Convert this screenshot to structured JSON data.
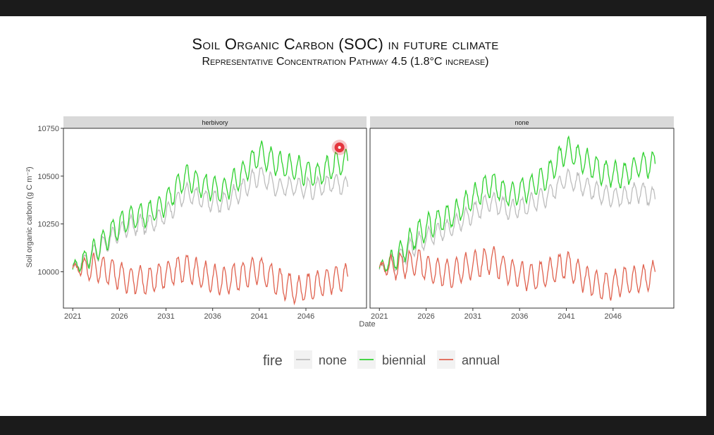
{
  "slide": {
    "title": "Soil Organic Carbon (SOC) in future climate",
    "subtitle": "Representative Concentration Pathway 4.5 (1.8°C increase)"
  },
  "chart_data": {
    "type": "line",
    "xlabel": "Date",
    "ylabel": "Soil organic carbon (g C m⁻²)",
    "x_ticks": [
      "2021",
      "2026",
      "2031",
      "2036",
      "2041",
      "2046"
    ],
    "y_ticks": [
      10000,
      10250,
      10500,
      10750
    ],
    "xlim": [
      2020.0,
      2052.5
    ],
    "ylim": [
      9810,
      10750
    ],
    "legend": {
      "title": "fire",
      "position": "bottom"
    },
    "colors": {
      "none": "#bdbdbd",
      "biennial": "#2fd12f",
      "annual": "#e0624f",
      "highlight": "#e01b24"
    },
    "panels": [
      {
        "name": "herbivory",
        "series": [
          {
            "name": "none",
            "x": [
              2021.0,
              2023.0,
              2025.0,
              2027.0,
              2029.0,
              2031.0,
              2033.0,
              2035.0,
              2037.0,
              2039.0,
              2041.0,
              2043.0,
              2045.0,
              2047.0,
              2049.0,
              2050.5
            ],
            "y": [
              10020,
              10080,
              10170,
              10240,
              10250,
              10300,
              10410,
              10380,
              10360,
              10420,
              10510,
              10440,
              10450,
              10430,
              10470,
              10450
            ]
          },
          {
            "name": "biennial",
            "x": [
              2021.0,
              2023.0,
              2025.0,
              2027.0,
              2029.0,
              2031.0,
              2033.0,
              2035.0,
              2037.0,
              2039.0,
              2041.0,
              2043.0,
              2045.0,
              2047.0,
              2049.0,
              2050.5
            ],
            "y": [
              10020,
              10090,
              10200,
              10280,
              10300,
              10360,
              10500,
              10450,
              10420,
              10500,
              10620,
              10560,
              10540,
              10500,
              10560,
              10580
            ]
          },
          {
            "name": "annual",
            "x": [
              2021.0,
              2023.0,
              2025.0,
              2027.0,
              2029.0,
              2031.0,
              2033.0,
              2035.0,
              2037.0,
              2039.0,
              2041.0,
              2043.0,
              2045.0,
              2047.0,
              2049.0,
              2050.5
            ],
            "y": [
              10020,
              10020,
              10000,
              9960,
              9950,
              9990,
              10020,
              9980,
              9950,
              9980,
              10010,
              9950,
              9900,
              9930,
              9960,
              9970
            ]
          }
        ]
      },
      {
        "name": "none",
        "series": [
          {
            "name": "none",
            "x": [
              2021.0,
              2023.0,
              2025.0,
              2027.0,
              2029.0,
              2031.0,
              2033.0,
              2035.0,
              2037.0,
              2039.0,
              2041.0,
              2043.0,
              2045.0,
              2047.0,
              2049.0,
              2050.5
            ],
            "y": [
              10020,
              10060,
              10150,
              10200,
              10240,
              10310,
              10370,
              10320,
              10350,
              10400,
              10490,
              10450,
              10400,
              10390,
              10420,
              10380
            ]
          },
          {
            "name": "biennial",
            "x": [
              2021.0,
              2023.0,
              2025.0,
              2027.0,
              2029.0,
              2031.0,
              2033.0,
              2035.0,
              2037.0,
              2039.0,
              2041.0,
              2043.0,
              2045.0,
              2047.0,
              2049.0,
              2050.5
            ],
            "y": [
              10020,
              10080,
              10200,
              10260,
              10300,
              10390,
              10460,
              10400,
              10440,
              10500,
              10640,
              10580,
              10520,
              10500,
              10560,
              10560
            ]
          },
          {
            "name": "annual",
            "x": [
              2021.0,
              2023.0,
              2025.0,
              2027.0,
              2029.0,
              2031.0,
              2033.0,
              2035.0,
              2037.0,
              2039.0,
              2041.0,
              2043.0,
              2045.0,
              2047.0,
              2049.0,
              2050.5
            ],
            "y": [
              10020,
              10030,
              10050,
              10000,
              9990,
              10040,
              10060,
              10000,
              9970,
              9990,
              10040,
              9960,
              9920,
              9950,
              9960,
              9990
            ]
          }
        ]
      }
    ],
    "highlight_marker": {
      "panel": "herbivory",
      "x": 2049.6,
      "y": 10650
    }
  }
}
